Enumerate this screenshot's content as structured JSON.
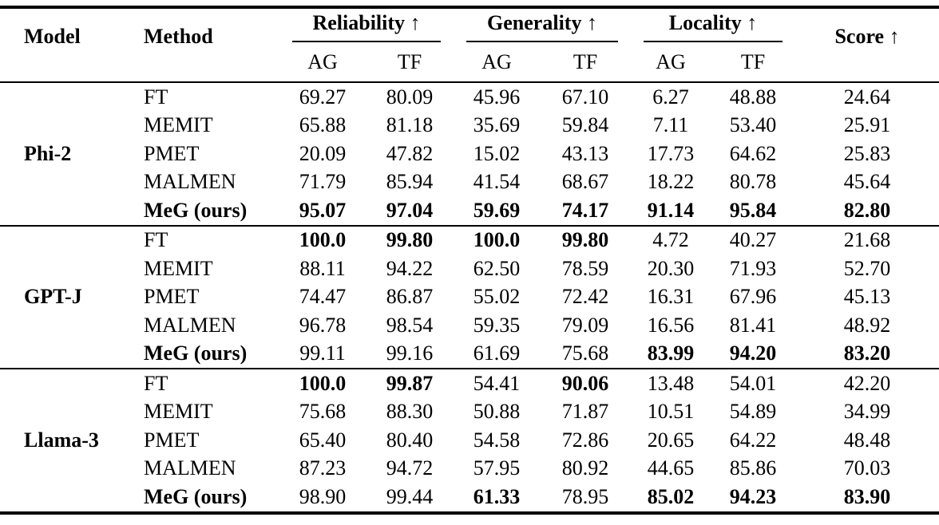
{
  "header": {
    "model": "Model",
    "method": "Method",
    "groups": [
      {
        "label": "Reliability ↑"
      },
      {
        "label": "Generality ↑"
      },
      {
        "label": "Locality ↑"
      }
    ],
    "subcols": [
      "AG",
      "TF",
      "AG",
      "TF",
      "AG",
      "TF"
    ],
    "score": "Score ↑"
  },
  "blocks": [
    {
      "model": "Phi-2",
      "rows": [
        {
          "method": "FT",
          "method_bold": false,
          "values": [
            "69.27",
            "80.09",
            "45.96",
            "67.10",
            "6.27",
            "48.88",
            "24.64"
          ],
          "bold_indices": []
        },
        {
          "method": "MEMIT",
          "method_bold": false,
          "values": [
            "65.88",
            "81.18",
            "35.69",
            "59.84",
            "7.11",
            "53.40",
            "25.91"
          ],
          "bold_indices": []
        },
        {
          "method": "PMET",
          "method_bold": false,
          "values": [
            "20.09",
            "47.82",
            "15.02",
            "43.13",
            "17.73",
            "64.62",
            "25.83"
          ],
          "bold_indices": []
        },
        {
          "method": "MALMEN",
          "method_bold": false,
          "values": [
            "71.79",
            "85.94",
            "41.54",
            "68.67",
            "18.22",
            "80.78",
            "45.64"
          ],
          "bold_indices": []
        },
        {
          "method": "MeG (ours)",
          "method_bold": true,
          "values": [
            "95.07",
            "97.04",
            "59.69",
            "74.17",
            "91.14",
            "95.84",
            "82.80"
          ],
          "bold_indices": [
            0,
            1,
            2,
            3,
            4,
            5,
            6
          ]
        }
      ]
    },
    {
      "model": "GPT-J",
      "rows": [
        {
          "method": "FT",
          "method_bold": false,
          "values": [
            "100.0",
            "99.80",
            "100.0",
            "99.80",
            "4.72",
            "40.27",
            "21.68"
          ],
          "bold_indices": [
            0,
            1,
            2,
            3
          ]
        },
        {
          "method": "MEMIT",
          "method_bold": false,
          "values": [
            "88.11",
            "94.22",
            "62.50",
            "78.59",
            "20.30",
            "71.93",
            "52.70"
          ],
          "bold_indices": []
        },
        {
          "method": "PMET",
          "method_bold": false,
          "values": [
            "74.47",
            "86.87",
            "55.02",
            "72.42",
            "16.31",
            "67.96",
            "45.13"
          ],
          "bold_indices": []
        },
        {
          "method": "MALMEN",
          "method_bold": false,
          "values": [
            "96.78",
            "98.54",
            "59.35",
            "79.09",
            "16.56",
            "81.41",
            "48.92"
          ],
          "bold_indices": []
        },
        {
          "method": "MeG (ours)",
          "method_bold": true,
          "values": [
            "99.11",
            "99.16",
            "61.69",
            "75.68",
            "83.99",
            "94.20",
            "83.20"
          ],
          "bold_indices": [
            4,
            5,
            6
          ]
        }
      ]
    },
    {
      "model": "Llama-3",
      "rows": [
        {
          "method": "FT",
          "method_bold": false,
          "values": [
            "100.0",
            "99.87",
            "54.41",
            "90.06",
            "13.48",
            "54.01",
            "42.20"
          ],
          "bold_indices": [
            0,
            1,
            3
          ]
        },
        {
          "method": "MEMIT",
          "method_bold": false,
          "values": [
            "75.68",
            "88.30",
            "50.88",
            "71.87",
            "10.51",
            "54.89",
            "34.99"
          ],
          "bold_indices": []
        },
        {
          "method": "PMET",
          "method_bold": false,
          "values": [
            "65.40",
            "80.40",
            "54.58",
            "72.86",
            "20.65",
            "64.22",
            "48.48"
          ],
          "bold_indices": []
        },
        {
          "method": "MALMEN",
          "method_bold": false,
          "values": [
            "87.23",
            "94.72",
            "57.95",
            "80.92",
            "44.65",
            "85.86",
            "70.03"
          ],
          "bold_indices": []
        },
        {
          "method": "MeG (ours)",
          "method_bold": true,
          "values": [
            "98.90",
            "99.44",
            "61.33",
            "78.95",
            "85.02",
            "94.23",
            "83.90"
          ],
          "bold_indices": [
            2,
            4,
            5,
            6
          ]
        }
      ]
    }
  ]
}
